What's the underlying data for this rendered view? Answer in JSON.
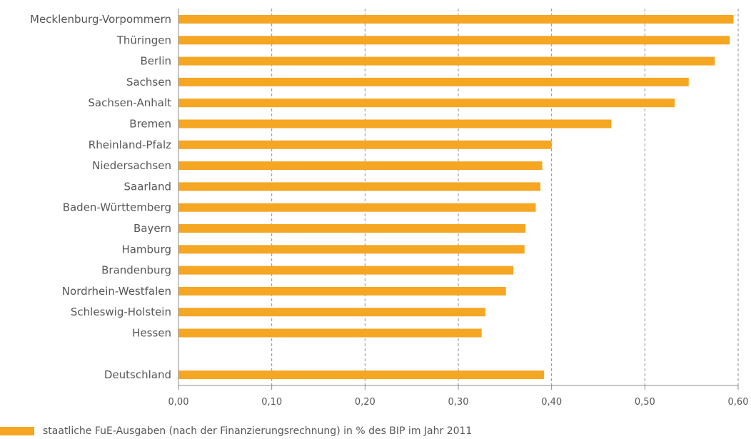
{
  "chart_data": {
    "type": "bar",
    "orientation": "horizontal",
    "categories": [
      "Mecklenburg-Vorpommern",
      "Thüringen",
      "Berlin",
      "Sachsen",
      "Sachsen-Anhalt",
      "Bremen",
      "Rheinland-Pfalz",
      "Niedersachsen",
      "Saarland",
      "Baden-Württemberg",
      "Bayern",
      "Hamburg",
      "Brandenburg",
      "Nordrhein-Westfalen",
      "Schleswig-Holstein",
      "Hessen",
      "",
      "Deutschland"
    ],
    "values": [
      0.595,
      0.591,
      0.575,
      0.547,
      0.532,
      0.464,
      0.4,
      0.39,
      0.388,
      0.383,
      0.372,
      0.371,
      0.359,
      0.351,
      0.329,
      0.325,
      null,
      0.392
    ],
    "xlim": [
      0,
      0.6
    ],
    "xticks": [
      0,
      0.1,
      0.2,
      0.3,
      0.4,
      0.5,
      0.6
    ],
    "xtick_labels": [
      "0,00",
      "0,10",
      "0,20",
      "0,30",
      "0,40",
      "0,50",
      "0,60"
    ],
    "grid": "vertical-dashed",
    "legend": {
      "placement": "bottom-left",
      "entries": [
        "staatliche FuE-Ausgaben (nach der Finanzierungsrechnung) in % des BIP im Jahr 2011"
      ]
    },
    "colors": {
      "bar": "#f5a623",
      "grid": "#8c8c8c",
      "axis": "#8c8c8c",
      "text": "#575757"
    }
  }
}
